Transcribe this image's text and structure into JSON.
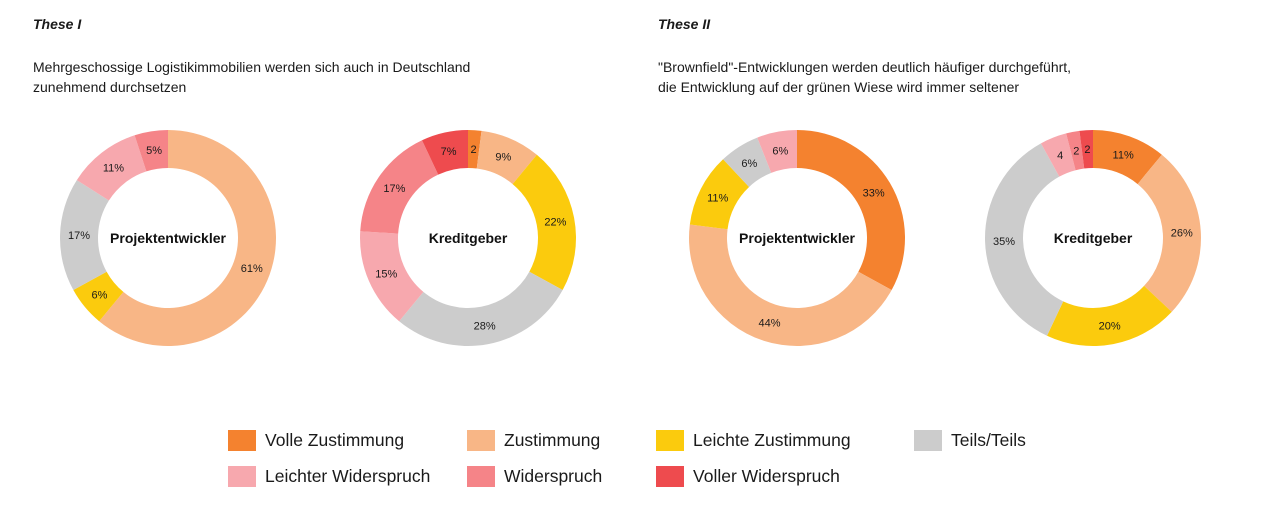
{
  "theses": [
    {
      "heading": "These I",
      "statement": "Mehrgeschossige Logistikimmobilien werden sich auch in Deutschland\nzunehmend durchsetzen"
    },
    {
      "heading": "These II",
      "statement": "\"Brownfield\"-Entwicklungen werden deutlich häufiger durchgeführt,\ndie Entwicklung auf der grünen Wiese wird immer seltener"
    }
  ],
  "legend": [
    {
      "key": "volle_zustimmung",
      "label": "Volle Zustimmung",
      "color": "#f4822f"
    },
    {
      "key": "zustimmung",
      "label": "Zustimmung",
      "color": "#f8b686"
    },
    {
      "key": "leichte_zustimmung",
      "label": "Leichte Zustimmung",
      "color": "#fbcb0d"
    },
    {
      "key": "teils_teils",
      "label": "Teils/Teils",
      "color": "#cccccc"
    },
    {
      "key": "leichter_widerspruch",
      "label": "Leichter Widerspruch",
      "color": "#f7a8ae"
    },
    {
      "key": "widerspruch",
      "label": "Widerspruch",
      "color": "#f58488"
    },
    {
      "key": "voller_widerspruch",
      "label": "Voller Widerspruch",
      "color": "#ee4b4e"
    }
  ],
  "chart_data": [
    {
      "type": "pie",
      "title": "These I",
      "center_label": "Projektentwickler",
      "slices": [
        {
          "category": "Zustimmung",
          "value": 61,
          "label": "61%"
        },
        {
          "category": "Leichte Zustimmung",
          "value": 6,
          "label": "6%"
        },
        {
          "category": "Teils/Teils",
          "value": 17,
          "label": "17%"
        },
        {
          "category": "Leichter Widerspruch",
          "value": 11,
          "label": "11%"
        },
        {
          "category": "Widerspruch",
          "value": 5,
          "label": "5%"
        }
      ]
    },
    {
      "type": "pie",
      "title": "These I",
      "center_label": "Kreditgeber",
      "slices": [
        {
          "category": "Volle Zustimmung",
          "value": 2,
          "label": "2"
        },
        {
          "category": "Zustimmung",
          "value": 9,
          "label": "9%"
        },
        {
          "category": "Leichte Zustimmung",
          "value": 22,
          "label": "22%"
        },
        {
          "category": "Teils/Teils",
          "value": 28,
          "label": "28%"
        },
        {
          "category": "Leichter Widerspruch",
          "value": 15,
          "label": "15%"
        },
        {
          "category": "Widerspruch",
          "value": 17,
          "label": "17%"
        },
        {
          "category": "Voller Widerspruch",
          "value": 7,
          "label": "7%"
        }
      ]
    },
    {
      "type": "pie",
      "title": "These II",
      "center_label": "Projektentwickler",
      "slices": [
        {
          "category": "Volle Zustimmung",
          "value": 33,
          "label": "33%"
        },
        {
          "category": "Zustimmung",
          "value": 44,
          "label": "44%"
        },
        {
          "category": "Leichte Zustimmung",
          "value": 11,
          "label": "11%"
        },
        {
          "category": "Teils/Teils",
          "value": 6,
          "label": "6%"
        },
        {
          "category": "Leichter Widerspruch",
          "value": 6,
          "label": "6%"
        }
      ]
    },
    {
      "type": "pie",
      "title": "These II",
      "center_label": "Kreditgeber",
      "slices": [
        {
          "category": "Volle Zustimmung",
          "value": 11,
          "label": "11%"
        },
        {
          "category": "Zustimmung",
          "value": 26,
          "label": "26%"
        },
        {
          "category": "Leichte Zustimmung",
          "value": 20,
          "label": "20%"
        },
        {
          "category": "Teils/Teils",
          "value": 35,
          "label": "35%"
        },
        {
          "category": "Leichter Widerspruch",
          "value": 4,
          "label": "4"
        },
        {
          "category": "Widerspruch",
          "value": 2,
          "label": "2"
        },
        {
          "category": "Voller Widerspruch",
          "value": 2,
          "label": "2"
        }
      ]
    }
  ]
}
